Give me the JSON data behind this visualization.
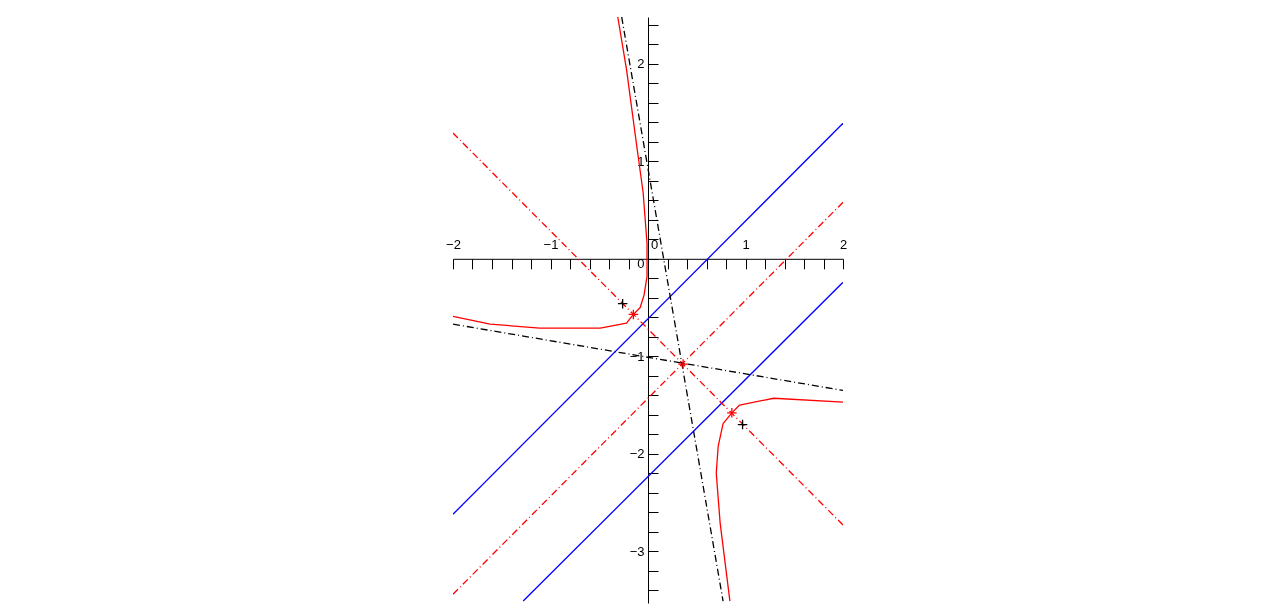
{
  "chart_data": {
    "type": "line",
    "xlim": [
      -2,
      2
    ],
    "ylim": [
      -3.53,
      2.48
    ],
    "xticks": [
      {
        "value": -2,
        "label": "−2"
      },
      {
        "value": -1.8,
        "label": null
      },
      {
        "value": -1.6,
        "label": null
      },
      {
        "value": -1.4,
        "label": null
      },
      {
        "value": -1.2,
        "label": null
      },
      {
        "value": -1,
        "label": "−1"
      },
      {
        "value": -0.8,
        "label": null
      },
      {
        "value": -0.6,
        "label": null
      },
      {
        "value": -0.4,
        "label": null
      },
      {
        "value": -0.2,
        "label": null
      },
      0,
      {
        "value": 0.2,
        "label": null
      },
      {
        "value": 0.4,
        "label": null
      },
      {
        "value": 0.6,
        "label": null
      },
      {
        "value": 0.8,
        "label": null
      },
      1,
      {
        "value": 1.2,
        "label": null
      },
      {
        "value": 1.4,
        "label": null
      },
      {
        "value": 1.6,
        "label": null
      },
      {
        "value": 1.8,
        "label": null
      },
      2
    ],
    "yticks": [
      {
        "value": -3.4,
        "label": null
      },
      {
        "value": -3.2,
        "label": null
      },
      {
        "value": -3,
        "label": "−3"
      },
      {
        "value": -2.8,
        "label": null
      },
      {
        "value": -2.6,
        "label": null
      },
      {
        "value": -2.4,
        "label": null
      },
      {
        "value": -2.2,
        "label": null
      },
      {
        "value": -2,
        "label": "−2"
      },
      {
        "value": -1.8,
        "label": null
      },
      {
        "value": -1.6,
        "label": null
      },
      {
        "value": -1.4,
        "label": null
      },
      {
        "value": -1.2,
        "label": null
      },
      {
        "value": -1,
        "label": "−1"
      },
      {
        "value": -0.8,
        "label": null
      },
      {
        "value": -0.6,
        "label": null
      },
      {
        "value": -0.4,
        "label": null
      },
      {
        "value": -0.2,
        "label": null
      },
      0,
      {
        "value": 0.2,
        "label": null
      },
      {
        "value": 0.4,
        "label": null
      },
      {
        "value": 0.6,
        "label": null
      },
      {
        "value": 0.8,
        "label": null
      },
      1,
      {
        "value": 1.2,
        "label": null
      },
      {
        "value": 1.4,
        "label": null
      },
      {
        "value": 1.6,
        "label": null
      },
      {
        "value": 1.8,
        "label": null
      },
      2,
      {
        "value": 2.2,
        "label": null
      },
      {
        "value": 2.4,
        "label": null
      }
    ],
    "series": [
      {
        "color": "#0000ff",
        "line_style": "solid",
        "x": [
          -2,
          2
        ],
        "values": [
          -2.62,
          1.39
        ]
      },
      {
        "color": "#0000ff",
        "line_style": "solid",
        "x": [
          -1.28,
          2
        ],
        "values": [
          -3.51,
          -0.24
        ]
      },
      {
        "color": "#ff0000",
        "line_style": "dashed",
        "x": [
          -2,
          2
        ],
        "values": [
          1.29,
          -2.73
        ]
      },
      {
        "color": "#ff0000",
        "line_style": "dashed",
        "x": [
          -2,
          2
        ],
        "values": [
          -3.44,
          0.58
        ]
      },
      {
        "color": "#000000",
        "line_style": "dashed",
        "x": [
          -0.27,
          0.77
        ],
        "values": [
          2.48,
          -3.51
        ]
      },
      {
        "color": "#000000",
        "line_style": "dashed",
        "x": [
          -2,
          2
        ],
        "values": [
          -0.67,
          -1.35
        ]
      },
      {
        "color": "#ff0000",
        "line_style": "solid",
        "x": [
          -0.31,
          -0.22,
          -0.12,
          -0.05,
          -0.01,
          -0.01,
          -0.04,
          -0.08,
          -0.15,
          -0.22,
          -0.49,
          -1.11,
          -1.62,
          -2.0
        ],
        "values": [
          2.48,
          1.94,
          1.19,
          0.68,
          0.16,
          -0.18,
          -0.37,
          -0.5,
          -0.57,
          -0.66,
          -0.71,
          -0.71,
          -0.67,
          -0.59
        ]
      },
      {
        "color": "#ff0000",
        "line_style": "solid",
        "x": [
          2.0,
          1.29,
          0.94,
          0.86,
          0.77,
          0.72,
          0.7,
          0.74,
          0.84
        ],
        "values": [
          -1.47,
          -1.43,
          -1.5,
          -1.58,
          -1.69,
          -1.92,
          -2.2,
          -2.71,
          -3.51
        ]
      },
      {
        "type": "scatter",
        "color": "#000000",
        "marker": "cross",
        "x": [
          -0.26,
          0.97
        ],
        "values": [
          -0.46,
          -1.7
        ]
      },
      {
        "type": "scatter",
        "color": "#ff0000",
        "marker": "cross",
        "x": [
          -0.15,
          0.36,
          0.86
        ],
        "values": [
          -0.57,
          -1.08,
          -1.58
        ]
      }
    ]
  }
}
